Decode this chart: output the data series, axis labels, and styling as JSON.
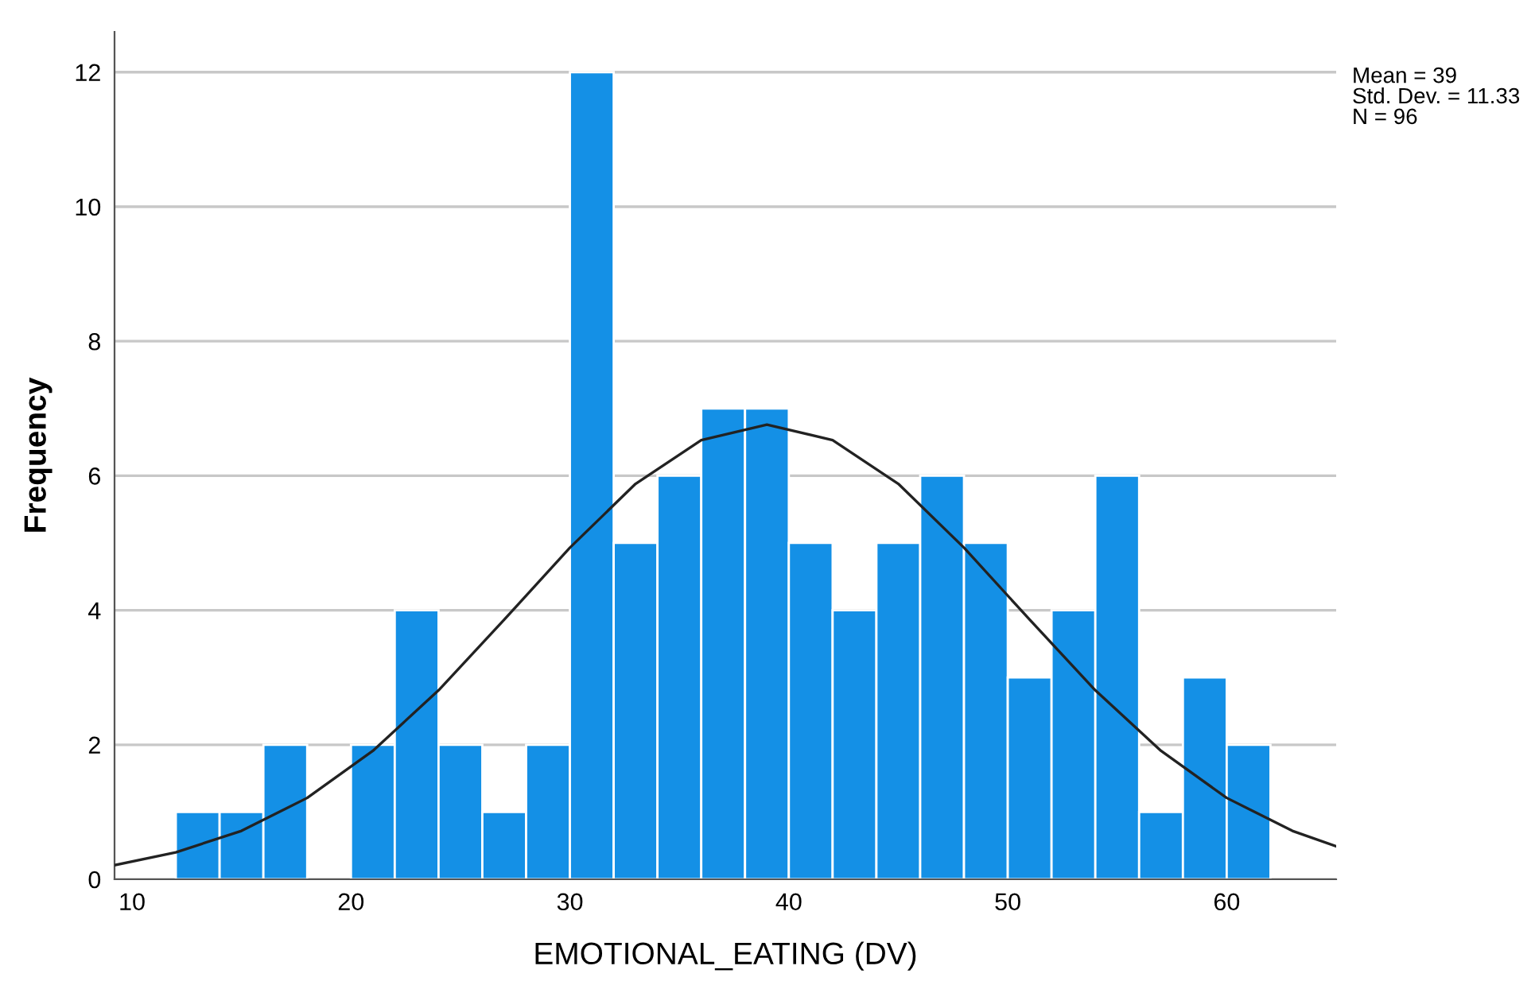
{
  "chart_data": {
    "type": "histogram",
    "xlabel": "EMOTIONAL_EATING (DV)",
    "ylabel": "Frequency",
    "bins": [
      12,
      14,
      16,
      18,
      20,
      22,
      24,
      26,
      28,
      30,
      32,
      34,
      36,
      38,
      40,
      42,
      44,
      46,
      48,
      50,
      52,
      54,
      56,
      58,
      60,
      62
    ],
    "values": [
      1,
      1,
      2,
      0,
      2,
      4,
      2,
      1,
      2,
      12,
      5,
      6,
      7,
      7,
      5,
      4,
      5,
      6,
      5,
      3,
      4,
      6,
      1,
      3,
      2
    ],
    "color": "#1490e6",
    "series": [
      {
        "type": "line",
        "color": "#222222",
        "x": [
          9.2,
          12,
          15,
          18,
          21,
          24,
          27,
          30,
          33,
          36,
          39,
          42,
          45,
          48,
          51,
          54,
          57,
          60,
          63,
          65
        ],
        "values": [
          0.21,
          0.4,
          0.72,
          1.21,
          1.91,
          2.81,
          3.86,
          4.93,
          5.88,
          6.53,
          6.76,
          6.53,
          5.88,
          4.93,
          3.86,
          2.81,
          1.91,
          1.21,
          0.72,
          0.49
        ]
      }
    ],
    "xlim": [
      9.2,
      65
    ],
    "xticks": [
      10,
      20,
      30,
      40,
      50,
      60
    ],
    "ylim": [
      0,
      12.6
    ],
    "yticks": [
      0,
      2,
      4,
      6,
      8,
      10,
      12
    ],
    "grid": "y",
    "annotations": [
      "Mean = 39\nStd. Dev. = 11.33\nN = 96"
    ]
  }
}
